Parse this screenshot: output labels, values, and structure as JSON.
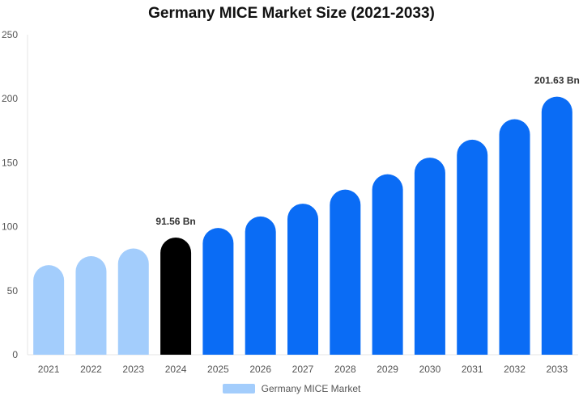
{
  "chart_data": {
    "type": "bar",
    "title": "Germany MICE Market Size (2021-2033)",
    "xlabel": "",
    "ylabel": "",
    "ylim": [
      0,
      250
    ],
    "yticks": [
      0,
      50,
      100,
      150,
      200,
      250
    ],
    "categories": [
      "2021",
      "2022",
      "2023",
      "2024",
      "2025",
      "2026",
      "2027",
      "2028",
      "2029",
      "2030",
      "2031",
      "2032",
      "2033"
    ],
    "series": [
      {
        "name": "Germany MICE Market",
        "values": [
          70,
          77,
          83,
          91.56,
          99,
          108,
          118,
          129,
          141,
          154,
          168,
          184,
          201.63
        ]
      }
    ],
    "data_labels": [
      {
        "category": "2024",
        "text": "91.56 Bn"
      },
      {
        "category": "2033",
        "text": "201.63 Bn"
      }
    ],
    "bar_colors": {
      "historical": "#a3cdfc",
      "current": "#000000",
      "forecast": "#0a6cf5"
    },
    "bar_periods": [
      "historical",
      "historical",
      "historical",
      "current",
      "forecast",
      "forecast",
      "forecast",
      "forecast",
      "forecast",
      "forecast",
      "forecast",
      "forecast",
      "forecast"
    ],
    "grid": false,
    "legend_position": "bottom-center"
  }
}
